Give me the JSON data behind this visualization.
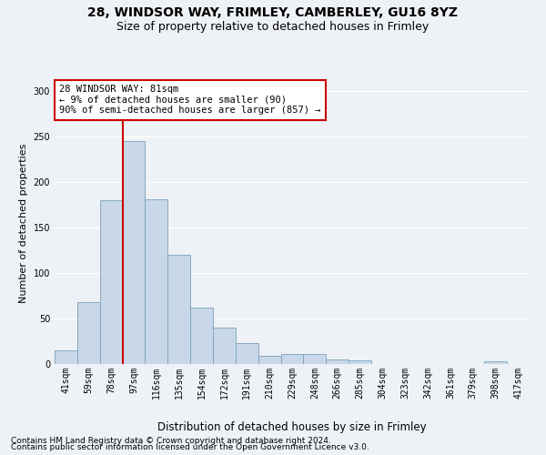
{
  "title1": "28, WINDSOR WAY, FRIMLEY, CAMBERLEY, GU16 8YZ",
  "title2": "Size of property relative to detached houses in Frimley",
  "xlabel": "Distribution of detached houses by size in Frimley",
  "ylabel": "Number of detached properties",
  "bar_color": "#c8d8e8",
  "bar_edge_color": "#7aa0bc",
  "vline_x_index": 2,
  "vline_color": "#cc0000",
  "categories": [
    "41sqm",
    "59sqm",
    "78sqm",
    "97sqm",
    "116sqm",
    "135sqm",
    "154sqm",
    "172sqm",
    "191sqm",
    "210sqm",
    "229sqm",
    "248sqm",
    "266sqm",
    "285sqm",
    "304sqm",
    "323sqm",
    "342sqm",
    "361sqm",
    "379sqm",
    "398sqm",
    "417sqm"
  ],
  "values": [
    15,
    68,
    180,
    245,
    181,
    120,
    62,
    40,
    23,
    9,
    11,
    11,
    5,
    4,
    0,
    0,
    0,
    0,
    0,
    3,
    0
  ],
  "ylim": [
    0,
    310
  ],
  "yticks": [
    0,
    50,
    100,
    150,
    200,
    250,
    300
  ],
  "annotation_text": "28 WINDSOR WAY: 81sqm\n← 9% of detached houses are smaller (90)\n90% of semi-detached houses are larger (857) →",
  "annotation_box_color": "#ffffff",
  "annotation_box_edgecolor": "#cc0000",
  "footer1": "Contains HM Land Registry data © Crown copyright and database right 2024.",
  "footer2": "Contains public sector information licensed under the Open Government Licence v3.0.",
  "background_color": "#eef2f6",
  "grid_color": "#ffffff",
  "title1_fontsize": 10,
  "title2_fontsize": 9,
  "xlabel_fontsize": 8.5,
  "ylabel_fontsize": 8,
  "tick_fontsize": 7,
  "annotation_fontsize": 7.5,
  "footer_fontsize": 6.5,
  "vline_position": 2.5
}
